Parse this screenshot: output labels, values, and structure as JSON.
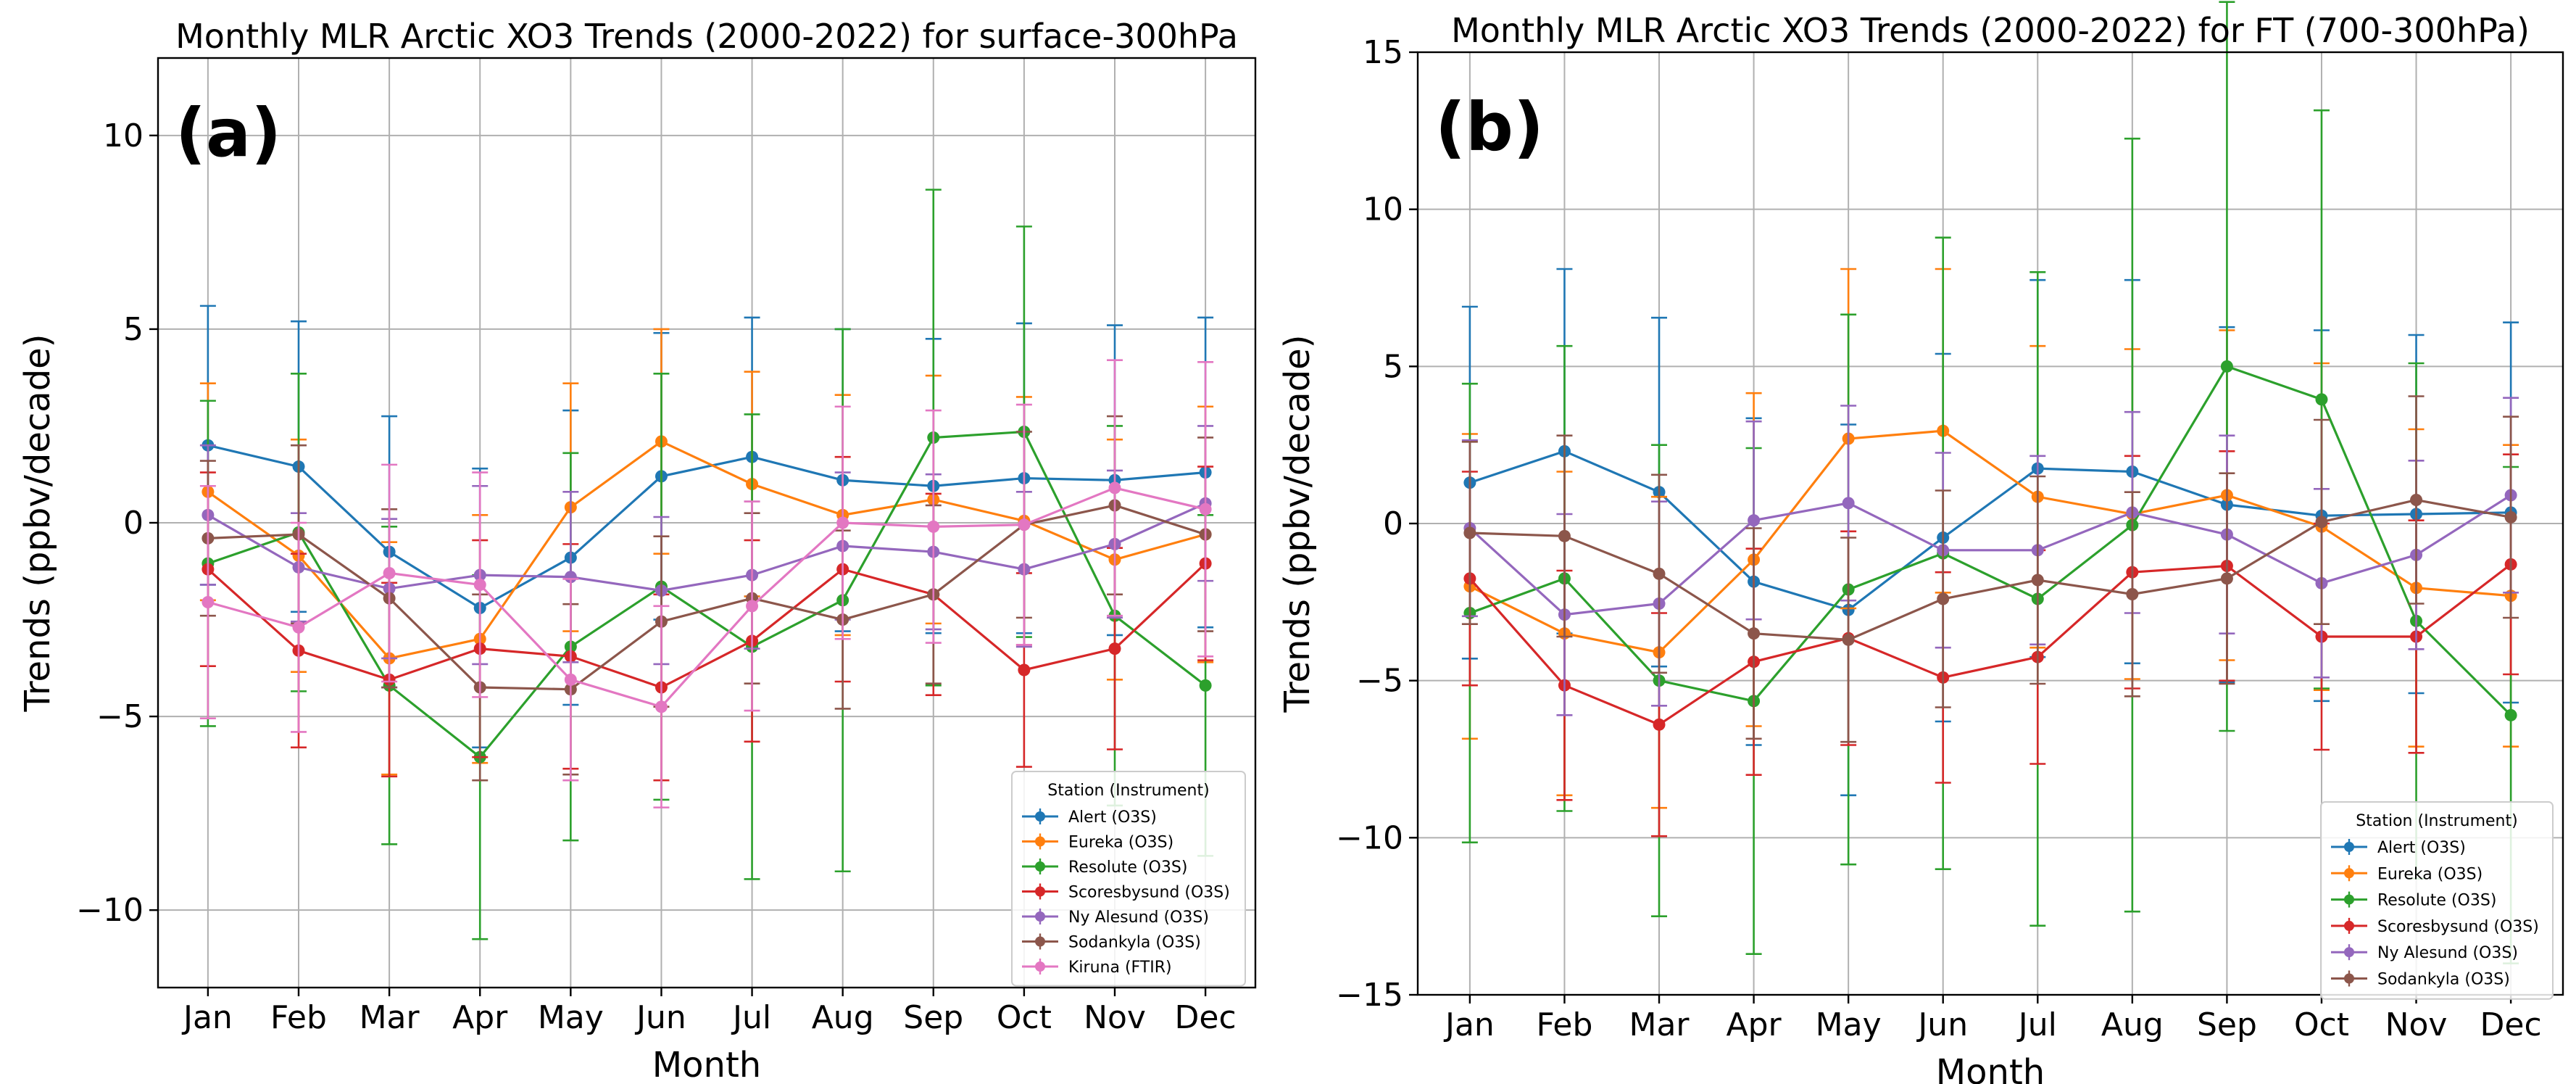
{
  "chart_data": [
    {
      "type": "line",
      "title": "Monthly MLR Arctic XO3 Trends (2000-2022) for surface-300hPa",
      "panel_label": "(a)",
      "xlabel": "Month",
      "ylabel": "Trends (ppbv/decade)",
      "categories": [
        "Jan",
        "Feb",
        "Mar",
        "Apr",
        "May",
        "Jun",
        "Jul",
        "Aug",
        "Sep",
        "Oct",
        "Nov",
        "Dec"
      ],
      "ylim": [
        -12,
        12
      ],
      "yticks": [
        -10,
        -5,
        0,
        5,
        10
      ],
      "ytick_labels": [
        "−10",
        "−5",
        "0",
        "5",
        "10"
      ],
      "grid": true,
      "legend_title": "Station (Instrument)",
      "legend_position": "bottom-right",
      "series": [
        {
          "name": "Alert (O3S)",
          "color": "#1f77b4",
          "values": [
            2.0,
            1.45,
            -0.75,
            -2.2,
            -0.9,
            1.2,
            1.7,
            1.1,
            0.95,
            1.15,
            1.1,
            1.3
          ],
          "err": [
            3.6,
            3.75,
            3.5,
            3.6,
            3.8,
            3.7,
            3.6,
            3.9,
            3.8,
            4.0,
            4.0,
            4.0
          ]
        },
        {
          "name": "Eureka (O3S)",
          "color": "#ff7f0e",
          "values": [
            0.8,
            -0.85,
            -3.5,
            -3.0,
            0.4,
            2.1,
            1.0,
            0.2,
            0.6,
            0.05,
            -0.95,
            -0.3
          ],
          "err": [
            2.8,
            3.0,
            3.0,
            3.2,
            3.2,
            2.9,
            2.9,
            3.1,
            3.2,
            3.2,
            3.1,
            3.3
          ]
        },
        {
          "name": "Resolute (O3S)",
          "color": "#2ca02c",
          "values": [
            -1.05,
            -0.25,
            -4.2,
            -6.05,
            -3.2,
            -1.65,
            -3.2,
            -2.0,
            2.2,
            2.35,
            -2.4,
            -4.2
          ],
          "err": [
            4.2,
            4.1,
            4.1,
            4.7,
            5.0,
            5.5,
            6.0,
            7.0,
            6.4,
            5.3,
            4.9,
            4.4
          ]
        },
        {
          "name": "Scoresbysund (O3S)",
          "color": "#d62728",
          "values": [
            -1.2,
            -3.3,
            -4.05,
            -3.25,
            -3.45,
            -4.25,
            -3.05,
            -1.2,
            -1.85,
            -3.8,
            -3.25,
            -1.05
          ],
          "err": [
            2.5,
            2.5,
            2.5,
            2.8,
            2.9,
            2.4,
            2.6,
            2.9,
            2.6,
            2.5,
            2.6,
            2.5
          ]
        },
        {
          "name": "Ny Alesund (O3S)",
          "color": "#9467bd",
          "values": [
            0.2,
            -1.15,
            -1.7,
            -1.35,
            -1.4,
            -1.75,
            -1.35,
            -0.6,
            -0.75,
            -1.2,
            -0.55,
            0.5
          ],
          "err": [
            1.8,
            1.4,
            1.8,
            2.3,
            2.2,
            1.9,
            1.9,
            1.9,
            2.0,
            2.0,
            1.9,
            2.0
          ]
        },
        {
          "name": "Sodankyla (O3S)",
          "color": "#8c564b",
          "values": [
            -0.4,
            -0.3,
            -1.95,
            -4.25,
            -4.3,
            -2.55,
            -1.95,
            -2.5,
            -1.85,
            -0.05,
            0.45,
            -0.3
          ],
          "err": [
            2.0,
            2.3,
            2.3,
            2.4,
            2.2,
            2.2,
            2.2,
            2.3,
            2.3,
            2.4,
            2.3,
            2.5
          ]
        },
        {
          "name": "Kiruna (FTIR)",
          "color": "#e377c2",
          "values": [
            -2.05,
            -2.7,
            -1.3,
            -1.6,
            -4.05,
            -4.75,
            -2.15,
            0.0,
            -0.1,
            -0.05,
            0.9,
            0.35
          ],
          "err": [
            3.0,
            2.7,
            2.8,
            2.9,
            2.6,
            2.6,
            2.7,
            3.0,
            3.0,
            3.1,
            3.3,
            3.8
          ]
        }
      ]
    },
    {
      "type": "line",
      "title": "Monthly MLR Arctic XO3 Trends (2000-2022) for FT (700-300hPa)",
      "panel_label": "(b)",
      "xlabel": "Month",
      "ylabel": "Trends (ppbv/decade)",
      "categories": [
        "Jan",
        "Feb",
        "Mar",
        "Apr",
        "May",
        "Jun",
        "Jul",
        "Aug",
        "Sep",
        "Oct",
        "Nov",
        "Dec"
      ],
      "ylim": [
        -15,
        15
      ],
      "yticks": [
        -15,
        -10,
        -5,
        0,
        5,
        10,
        15
      ],
      "ytick_labels": [
        "−15",
        "−10",
        "−5",
        "0",
        "5",
        "10",
        "15"
      ],
      "grid": true,
      "legend_title": "Station (Instrument)",
      "legend_position": "bottom-right",
      "series": [
        {
          "name": "Alert (O3S)",
          "color": "#1f77b4",
          "values": [
            1.3,
            2.3,
            1.0,
            -1.85,
            -2.75,
            -0.45,
            1.75,
            1.65,
            0.6,
            0.25,
            0.3,
            0.35
          ],
          "err": [
            5.6,
            5.8,
            5.55,
            5.2,
            5.9,
            5.85,
            6.0,
            6.1,
            5.65,
            5.9,
            5.7,
            6.05
          ]
        },
        {
          "name": "Eureka (O3S)",
          "color": "#ff7f0e",
          "values": [
            -2.0,
            -3.5,
            -4.1,
            -1.15,
            2.7,
            2.95,
            0.85,
            0.3,
            0.9,
            -0.1,
            -2.05,
            -2.3
          ],
          "err": [
            4.85,
            5.15,
            4.95,
            5.3,
            5.4,
            5.15,
            4.8,
            5.25,
            5.25,
            5.2,
            5.05,
            4.8
          ]
        },
        {
          "name": "Resolute (O3S)",
          "color": "#2ca02c",
          "values": [
            -2.85,
            -1.75,
            -5.0,
            -5.65,
            -2.1,
            -0.95,
            -2.4,
            -0.05,
            5.0,
            3.95,
            -3.1,
            -6.1
          ],
          "err": [
            7.3,
            7.4,
            7.5,
            8.05,
            8.75,
            10.05,
            10.4,
            12.3,
            11.6,
            9.2,
            8.2,
            7.9
          ]
        },
        {
          "name": "Scoresbysund (O3S)",
          "color": "#d62728",
          "values": [
            -1.75,
            -5.15,
            -6.4,
            -4.4,
            -3.65,
            -4.9,
            -4.25,
            -1.55,
            -1.35,
            -3.6,
            -3.6,
            -1.3
          ],
          "err": [
            3.4,
            3.65,
            3.55,
            3.6,
            3.4,
            3.35,
            3.4,
            3.7,
            3.65,
            3.6,
            3.7,
            3.5
          ]
        },
        {
          "name": "Ny Alesund (O3S)",
          "color": "#9467bd",
          "values": [
            -0.15,
            -2.9,
            -2.55,
            0.1,
            0.65,
            -0.85,
            -0.85,
            0.35,
            -0.35,
            -1.9,
            -1.0,
            0.9
          ],
          "err": [
            2.8,
            3.2,
            3.25,
            3.15,
            3.1,
            3.1,
            3.0,
            3.2,
            3.15,
            3.0,
            3.0,
            3.1
          ]
        },
        {
          "name": "Sodankyla (O3S)",
          "color": "#8c564b",
          "values": [
            -0.3,
            -0.4,
            -1.6,
            -3.5,
            -3.7,
            -2.4,
            -1.8,
            -2.25,
            -1.75,
            0.05,
            0.75,
            0.2
          ],
          "err": [
            2.9,
            3.2,
            3.15,
            3.35,
            3.25,
            3.45,
            3.3,
            3.25,
            3.35,
            3.25,
            3.3,
            3.2
          ]
        }
      ]
    }
  ]
}
